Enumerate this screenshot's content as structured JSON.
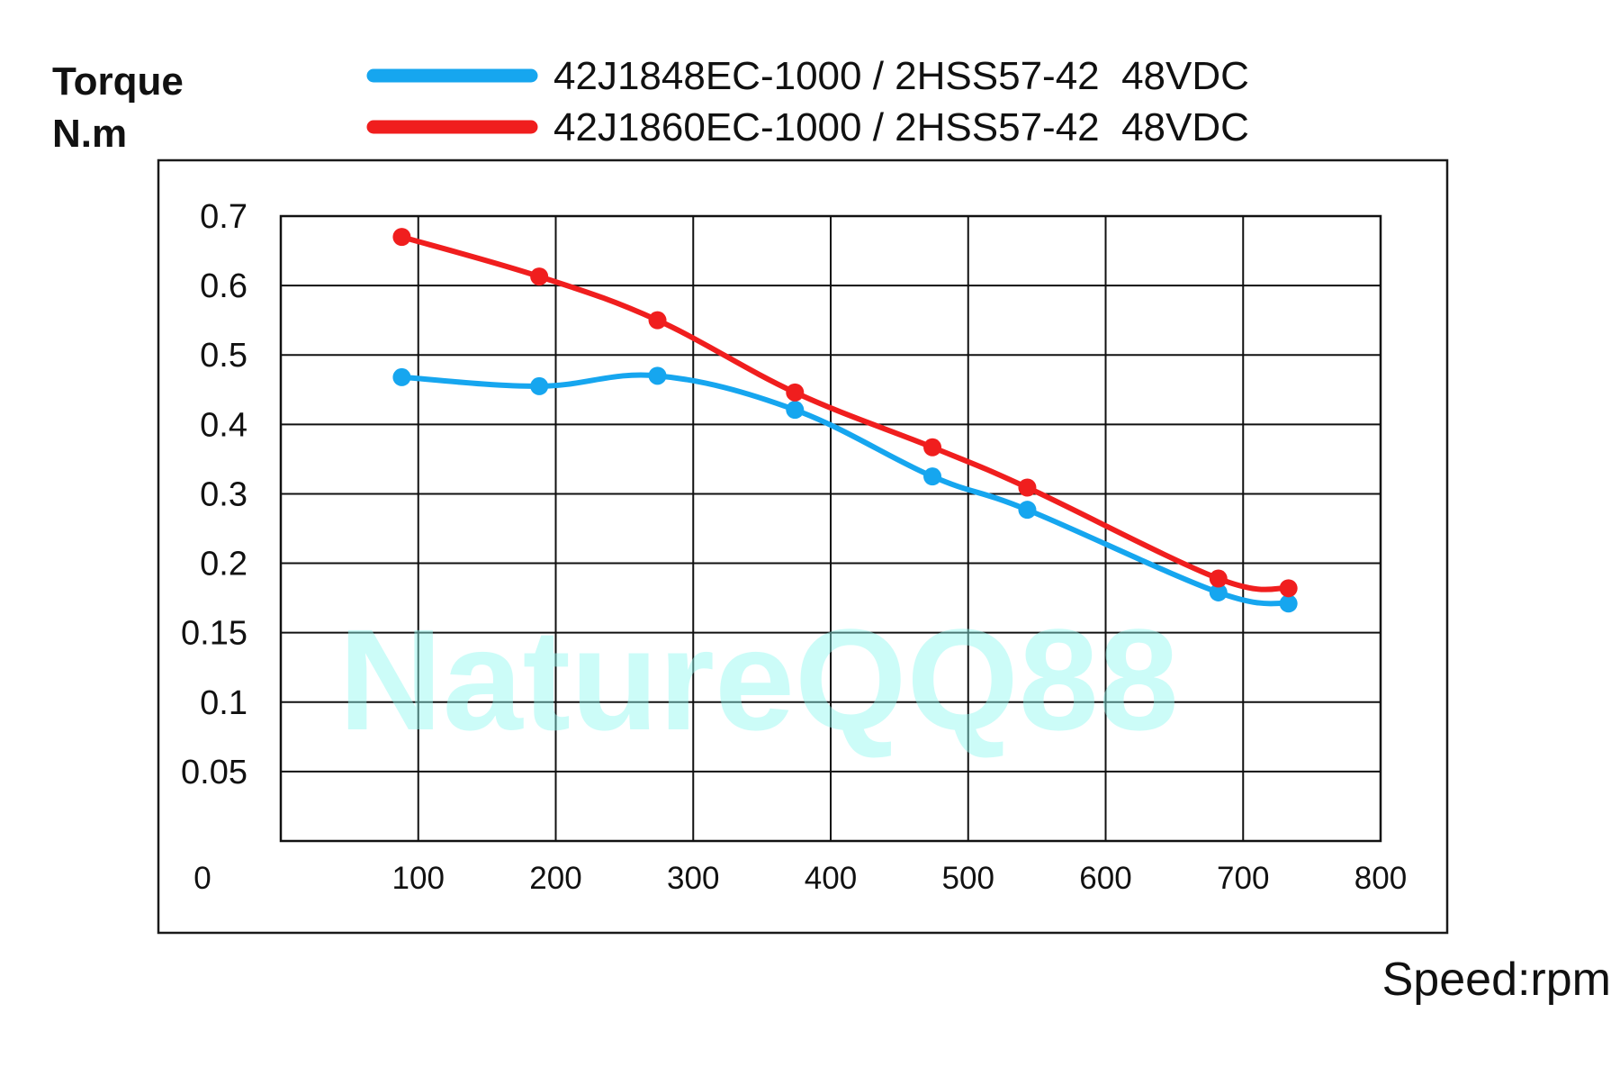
{
  "chart_data": {
    "type": "line",
    "ylabel_line1": "Torque",
    "ylabel_line2": "N.m",
    "xlabel": "Speed:rpm",
    "watermark": "NatureQQ88",
    "x_ticks": [
      0,
      100,
      200,
      300,
      400,
      500,
      600,
      700,
      800
    ],
    "y_ticks": [
      0.05,
      0.1,
      0.15,
      0.2,
      0.3,
      0.4,
      0.5,
      0.6,
      0.7
    ],
    "y_ticks_label": [
      "0.05",
      "0.1",
      "0.15",
      "0.2",
      "0.3",
      "0.4",
      "0.5",
      "0.6",
      "0.7"
    ],
    "y_axis_note": "non-uniform axis: each printed tick label occupies one equal grid row",
    "xlim": [
      0,
      800
    ],
    "grid": true,
    "legend_position": "top",
    "series": [
      {
        "name": "42J1848EC-1000 / 2HSS57-42  48VDC",
        "color": "#16a6ef",
        "x": [
          88,
          188,
          274,
          374,
          474,
          543,
          682,
          733
        ],
        "y": [
          0.468,
          0.455,
          0.47,
          0.421,
          0.325,
          0.277,
          0.179,
          0.171
        ]
      },
      {
        "name": "42J1860EC-1000 / 2HSS57-42  48VDC",
        "color": "#f01e1e",
        "x": [
          88,
          188,
          274,
          374,
          474,
          543,
          682,
          733
        ],
        "y": [
          0.67,
          0.613,
          0.55,
          0.446,
          0.367,
          0.309,
          0.189,
          0.182
        ]
      }
    ]
  }
}
